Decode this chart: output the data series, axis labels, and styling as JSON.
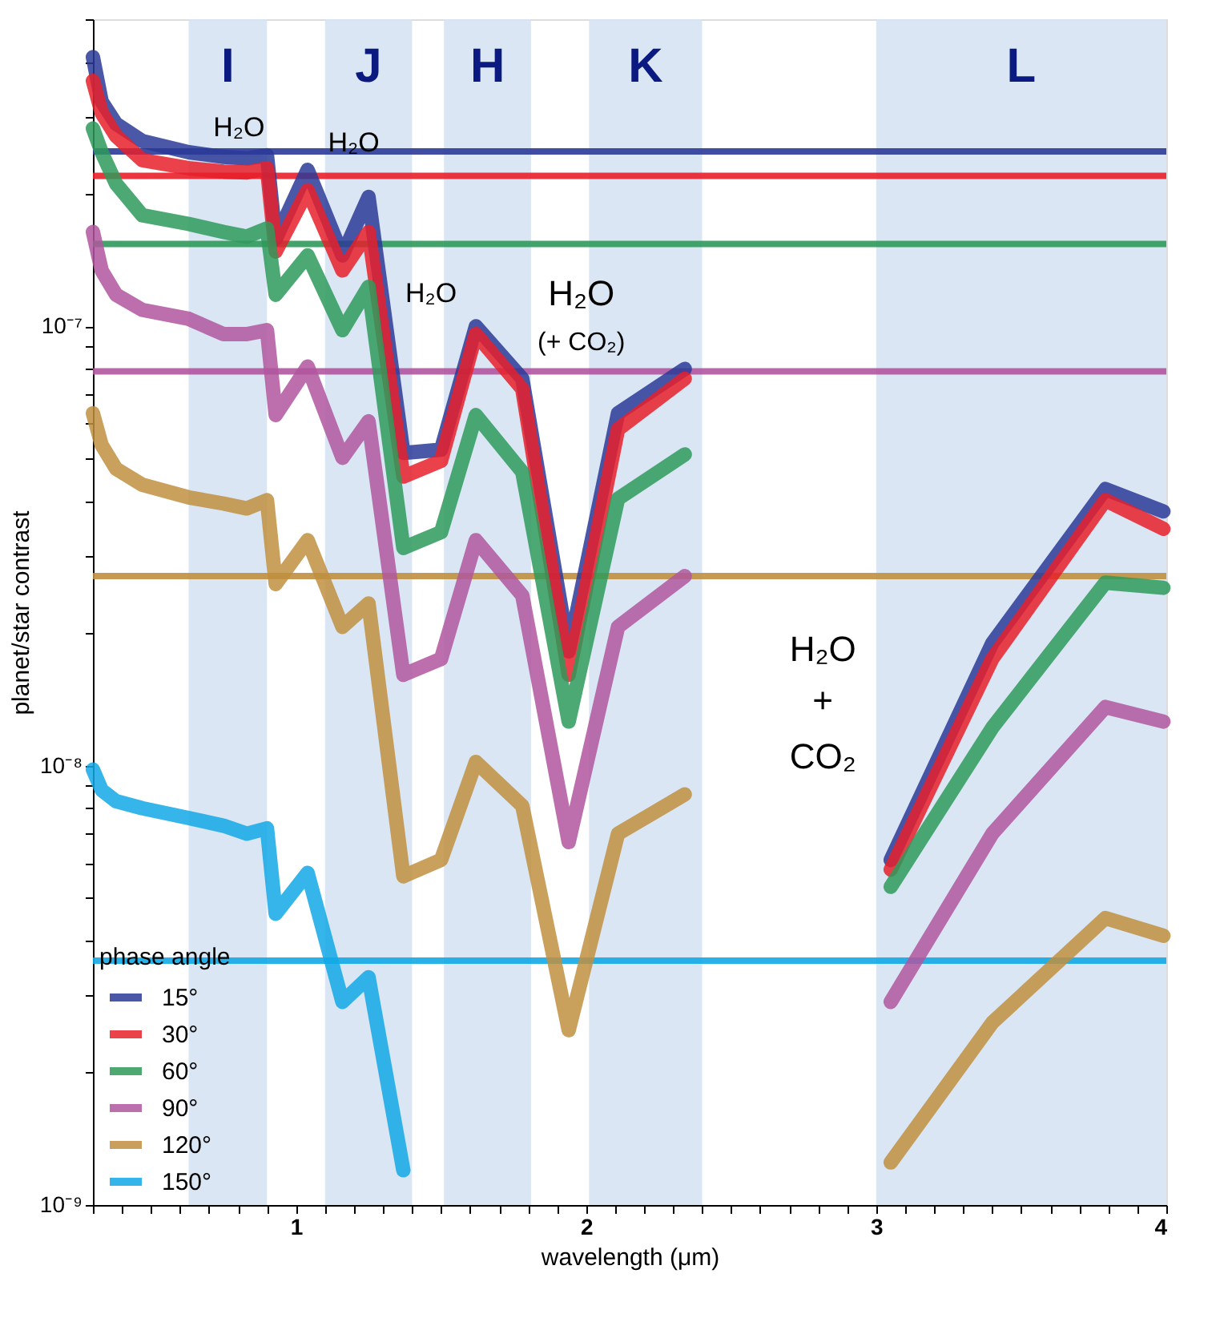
{
  "chart_data": {
    "type": "line",
    "xlabel": "wavelength (μm)",
    "ylabel": "planet/star contrast",
    "legend_title": "phase angle",
    "legend": "bottom left",
    "grid": false,
    "log": "y",
    "xlim": [
      0.3,
      4.0
    ],
    "ylim": [
      1e-09,
      5e-07
    ],
    "xticks": [
      {
        "value": 0.3,
        "label": null
      },
      {
        "value": 0.4,
        "label": null
      },
      {
        "value": 0.5,
        "label": null
      },
      {
        "value": 0.6,
        "label": null
      },
      {
        "value": 0.7,
        "label": null
      },
      {
        "value": 0.8,
        "label": null
      },
      {
        "value": 0.9,
        "label": null
      },
      1,
      {
        "value": 1.1,
        "label": null
      },
      {
        "value": 1.2,
        "label": null
      },
      {
        "value": 1.3,
        "label": null
      },
      {
        "value": 1.4,
        "label": null
      },
      {
        "value": 1.5,
        "label": null
      },
      {
        "value": 1.6,
        "label": null
      },
      {
        "value": 1.7,
        "label": null
      },
      {
        "value": 1.8,
        "label": null
      },
      {
        "value": 1.9,
        "label": null
      },
      2,
      {
        "value": 2.1,
        "label": null
      },
      {
        "value": 2.2,
        "label": null
      },
      {
        "value": 2.3,
        "label": null
      },
      {
        "value": 2.4,
        "label": null
      },
      {
        "value": 2.5,
        "label": null
      },
      {
        "value": 2.6,
        "label": null
      },
      {
        "value": 2.7,
        "label": null
      },
      {
        "value": 2.8,
        "label": null
      },
      {
        "value": 2.9,
        "label": null
      },
      3,
      {
        "value": 3.1,
        "label": null
      },
      {
        "value": 3.2,
        "label": null
      },
      {
        "value": 3.3,
        "label": null
      },
      {
        "value": 3.4,
        "label": null
      },
      {
        "value": 3.5,
        "label": null
      },
      {
        "value": 3.6,
        "label": null
      },
      {
        "value": 3.7,
        "label": null
      },
      {
        "value": 3.8,
        "label": null
      },
      {
        "value": 3.9,
        "label": null
      },
      4
    ],
    "yticks": [
      {
        "value": 1e-09,
        "label": "10⁻⁹"
      },
      {
        "value": 2e-09,
        "label": null
      },
      {
        "value": 3e-09,
        "label": null
      },
      {
        "value": 4e-09,
        "label": null
      },
      {
        "value": 5e-09,
        "label": null
      },
      {
        "value": 6e-09,
        "label": null
      },
      {
        "value": 7e-09,
        "label": null
      },
      {
        "value": 8e-09,
        "label": null
      },
      {
        "value": 9e-09,
        "label": null
      },
      {
        "value": 1e-08,
        "label": "10⁻⁸"
      },
      {
        "value": 2e-08,
        "label": null
      },
      {
        "value": 3e-08,
        "label": null
      },
      {
        "value": 4e-08,
        "label": null
      },
      {
        "value": 5e-08,
        "label": null
      },
      {
        "value": 6e-08,
        "label": null
      },
      {
        "value": 7e-08,
        "label": null
      },
      {
        "value": 8e-08,
        "label": null
      },
      {
        "value": 9e-08,
        "label": null
      },
      {
        "value": 1e-07,
        "label": "10⁻⁷"
      },
      {
        "value": 2e-07,
        "label": null
      },
      {
        "value": 3e-07,
        "label": null
      },
      {
        "value": 4e-07,
        "label": null
      },
      {
        "value": 5e-07,
        "label": null
      }
    ],
    "x": [
      0.3,
      0.33,
      0.38,
      0.47,
      0.63,
      0.75,
      0.83,
      0.9,
      0.93,
      1.04,
      1.16,
      1.25,
      1.37,
      1.5,
      1.62,
      1.78,
      1.94,
      2.11,
      2.34,
      2.7,
      3.05,
      3.4,
      3.79,
      3.99
    ],
    "series": [
      {
        "name": "15°",
        "color": "#2b3a98",
        "values": [
          4.1e-07,
          3.25e-07,
          2.89e-07,
          2.64e-07,
          2.49e-07,
          2.43e-07,
          2.41e-07,
          2.45e-07,
          1.58e-07,
          2.27e-07,
          1.45e-07,
          1.97e-07,
          5.15e-08,
          5.24e-08,
          1e-07,
          7.6e-08,
          1.82e-08,
          6.34e-08,
          8e-08,
          null,
          6.1e-09,
          1.9e-08,
          4.26e-08,
          3.79e-08
        ]
      },
      {
        "name": "30°",
        "color": "#e8202a",
        "values": [
          3.62e-07,
          3.06e-07,
          2.71e-07,
          2.39e-07,
          2.29e-07,
          2.25e-07,
          2.24e-07,
          2.29e-07,
          1.48e-07,
          2.04e-07,
          1.34e-07,
          1.64e-07,
          4.55e-08,
          4.94e-08,
          9.6e-08,
          7.2e-08,
          1.61e-08,
          5.83e-08,
          7.6e-08,
          null,
          5.8e-09,
          1.75e-08,
          4.02e-08,
          3.46e-08
        ]
      },
      {
        "name": "60°",
        "color": "#2e9a5a",
        "values": [
          2.82e-07,
          2.49e-07,
          2.11e-07,
          1.79e-07,
          1.71e-07,
          1.64e-07,
          1.6e-07,
          1.67e-07,
          1.18e-07,
          1.45e-07,
          9.8e-08,
          1.23e-07,
          3.13e-08,
          3.4e-08,
          6.28e-08,
          4.66e-08,
          1.26e-08,
          4.05e-08,
          5.11e-08,
          null,
          5.3e-09,
          1.22e-08,
          2.61e-08,
          2.54e-08
        ]
      },
      {
        "name": "90°",
        "color": "#b0569e",
        "values": [
          1.64e-07,
          1.34e-07,
          1.18e-07,
          1.09e-07,
          1.04e-07,
          9.6e-08,
          9.6e-08,
          9.8e-08,
          6.28e-08,
          8.1e-08,
          5.02e-08,
          6.08e-08,
          1.61e-08,
          1.75e-08,
          3.26e-08,
          2.44e-08,
          6.7e-09,
          2.07e-08,
          2.7e-08,
          null,
          2.9e-09,
          7e-09,
          1.36e-08,
          1.26e-08
        ]
      },
      {
        "name": "120°",
        "color": "#c08f3f",
        "values": [
          6.34e-08,
          5.37e-08,
          4.74e-08,
          4.36e-08,
          4.08e-08,
          3.95e-08,
          3.85e-08,
          4.02e-08,
          2.59e-08,
          3.26e-08,
          2.07e-08,
          2.34e-08,
          5.6e-09,
          6.1e-09,
          1.02e-08,
          8.1e-09,
          2.5e-09,
          7e-09,
          8.6e-09,
          null,
          1.25e-09,
          2.6e-09,
          4.5e-09,
          4.1e-09
        ]
      },
      {
        "name": "150°",
        "color": "#12a8e6",
        "values": [
          9.8e-09,
          8.8e-09,
          8.3e-09,
          8e-09,
          7.6e-09,
          7.3e-09,
          7e-09,
          7.2e-09,
          4.6e-09,
          5.7e-09,
          2.9e-09,
          3.3e-09,
          1.2e-09,
          null,
          null,
          null,
          null,
          null,
          null,
          null,
          null,
          null,
          null,
          null
        ]
      }
    ],
    "ref_lines": [
      {
        "axis": "y",
        "value": 2.5e-07,
        "color": "#2b3a98"
      },
      {
        "axis": "y",
        "value": 2.2e-07,
        "color": "#e8202a"
      },
      {
        "axis": "y",
        "value": 1.54e-07,
        "color": "#2e9a5a"
      },
      {
        "axis": "y",
        "value": 7.9e-08,
        "color": "#b0569e"
      },
      {
        "axis": "y",
        "value": 2.7e-08,
        "color": "#c08f3f"
      },
      {
        "axis": "y",
        "value": 3.6e-09,
        "color": "#12a8e6"
      }
    ],
    "bands": [
      {
        "axis": "x",
        "from": 0.63,
        "to": 0.9,
        "label": "I",
        "color": "#d6e3f3"
      },
      {
        "axis": "x",
        "from": 1.1,
        "to": 1.4,
        "label": "J",
        "color": "#d6e3f3"
      },
      {
        "axis": "x",
        "from": 1.51,
        "to": 1.81,
        "label": "H",
        "color": "#d6e3f3"
      },
      {
        "axis": "x",
        "from": 2.01,
        "to": 2.4,
        "label": "K",
        "color": "#d6e3f3"
      },
      {
        "axis": "x",
        "from": 3.0,
        "to": 4.0,
        "label": "L",
        "color": "#d6e3f3"
      }
    ],
    "annotations": [
      "H₂O",
      "H₂O",
      "H₂O",
      "H₂O",
      "(+ CO₂)",
      "H₂O",
      "+",
      "CO₂"
    ]
  }
}
